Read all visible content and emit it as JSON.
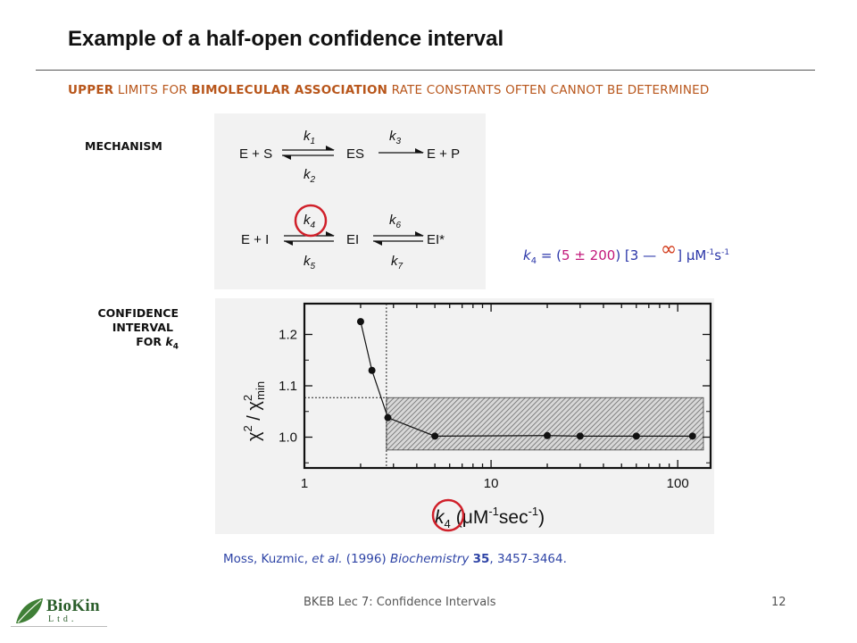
{
  "title": "Example of a half-open confidence interval",
  "subtitle": {
    "w1": "UPPER",
    "w2": " LIMITS FOR ",
    "w3": "BIMOLECULAR ASSOCIATION",
    "w4": " RATE CONSTANTS OFTEN CANNOT BE DETERMINED"
  },
  "labels": {
    "mechanism": "MECHANISM",
    "ci_line1": "CONFIDENCE",
    "ci_line2": "INTERVAL",
    "ci_line3": "FOR ",
    "ci_k": "k",
    "ci_sub": "4"
  },
  "mechanism": {
    "row1": {
      "left": "E + S",
      "mid": "ES",
      "right": "E + P",
      "k_top1": "k",
      "k_top1_sub": "1",
      "k_bot1": "k",
      "k_bot1_sub": "2",
      "k_top2": "k",
      "k_top2_sub": "3"
    },
    "row2": {
      "left": "E + I",
      "mid": "EI",
      "right": "EI*",
      "k_top1": "k",
      "k_top1_sub": "4",
      "k_bot1": "k",
      "k_bot1_sub": "5",
      "k_top2": "k",
      "k_top2_sub": "6",
      "k_bot2": "k",
      "k_bot2_sub": "7"
    }
  },
  "equation": {
    "k": "k",
    "sub": "4",
    "eq": " = (",
    "value": "5 ± 200",
    "mid": ") [3 — ",
    "inf": "∞",
    "end": "] μM",
    "sup1": "-1",
    "s": "s",
    "sup2": "-1"
  },
  "citation": {
    "authors": "Moss, Kuzmic, ",
    "etal": "et al.",
    "year": " (1996) ",
    "journal": "Biochemistry",
    "space": " ",
    "volume": "35",
    "pages": ", 3457-3464."
  },
  "footer": {
    "center": "BKEB Lec 7: Confidence Intervals",
    "page": "12"
  },
  "logo": {
    "name": "BioKin",
    "sub": "Ltd."
  },
  "colors": {
    "accent_orange": "#b8561b",
    "blue": "#2a35a8",
    "magenta": "#c2187a",
    "red_circle": "#d0202a",
    "logo_green": "#2a5e2a"
  },
  "chart_data": {
    "type": "scatter",
    "x_scale": "log",
    "xlim": [
      1,
      150
    ],
    "ylim": [
      0.94,
      1.26
    ],
    "x_ticks": [
      1,
      10,
      100
    ],
    "x_tick_labels": [
      "1",
      "10",
      "100"
    ],
    "y_ticks": [
      1.0,
      1.1,
      1.2
    ],
    "y_tick_labels": [
      "1.0",
      "1.1",
      "1.2"
    ],
    "xlabel": {
      "k": "k",
      "sub": "4",
      "unit": "(μM",
      "sup": "-1",
      "rest": "sec",
      "sup2": "-1",
      "close": ")"
    },
    "ylabel": {
      "chi": "χ",
      "sup": "2",
      "slash": " / ",
      "chi2": "χ",
      "sup2": "2",
      "sub": "min"
    },
    "series": [
      {
        "x": [
          2,
          2.3,
          2.8,
          5,
          20,
          30,
          60,
          120
        ],
        "y": [
          1.225,
          1.13,
          1.038,
          1.002,
          1.003,
          1.002,
          1.002,
          1.002
        ]
      }
    ],
    "threshold_y": 1.077,
    "threshold_x": 2.75,
    "shaded_region": {
      "x": [
        2.75,
        150
      ],
      "y": [
        0.975,
        1.077
      ]
    }
  }
}
